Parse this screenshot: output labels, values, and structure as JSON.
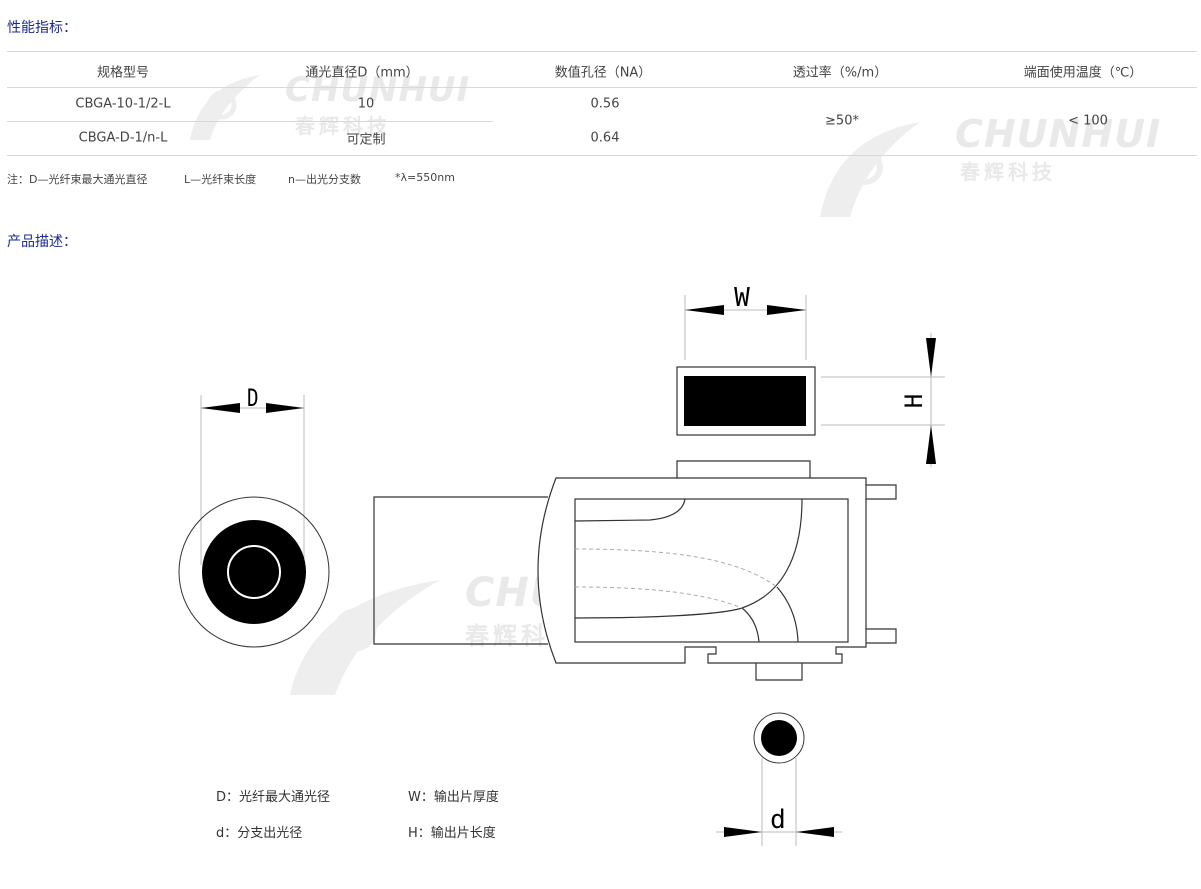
{
  "specs": {
    "title": "性能指标：",
    "headers": [
      "规格型号",
      "通光直径D（mm）",
      "数值孔径（NA）",
      "透过率（%/m）",
      "端面使用温度（℃）"
    ],
    "rows": [
      [
        "CBGA-10-1/2-L",
        "10",
        "0.56"
      ],
      [
        "CBGA-D-1/n-L",
        "可定制",
        "0.64"
      ]
    ],
    "merged": {
      "transmittance": "≥50*",
      "temperature": "< 100"
    },
    "notes": [
      "注：D—光纤束最大通光直径",
      "L—光纤束长度",
      "n—出光分支数",
      "*λ=550nm"
    ]
  },
  "description": {
    "title": "产品描述：",
    "labels": {
      "D": "D",
      "W": "W",
      "H": "H",
      "d": "d"
    },
    "legend": [
      "D：光纤最大通光径",
      "W：输出片厚度",
      "d：分支出光径",
      "H：输出片长度"
    ]
  },
  "watermark": {
    "en": "CHUNHUI",
    "cn": "春辉科技"
  },
  "colors": {
    "title": "#1d2c8c",
    "line": "#d8d8d8",
    "drawing": "#000000"
  }
}
